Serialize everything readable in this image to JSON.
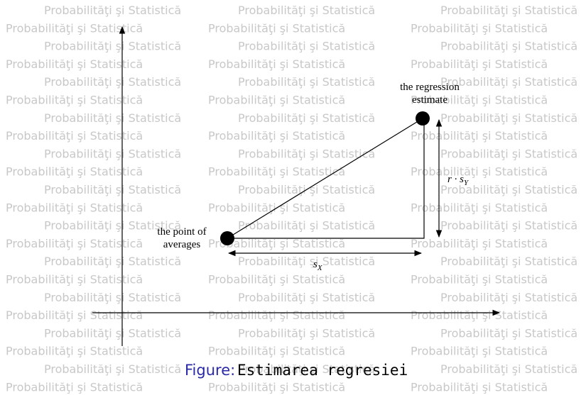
{
  "watermark": "Probabilităţi şi Statistică",
  "labels": {
    "estimate": [
      "the regression",
      "estimate"
    ],
    "averages": [
      "the point of",
      "averages"
    ],
    "r_sy": {
      "r": "r · s",
      "sub": "Y"
    },
    "sx": {
      "s": "s",
      "sub": "X"
    }
  },
  "caption": {
    "prefix": "Figure:",
    "text": "Estimarea regresiei"
  }
}
